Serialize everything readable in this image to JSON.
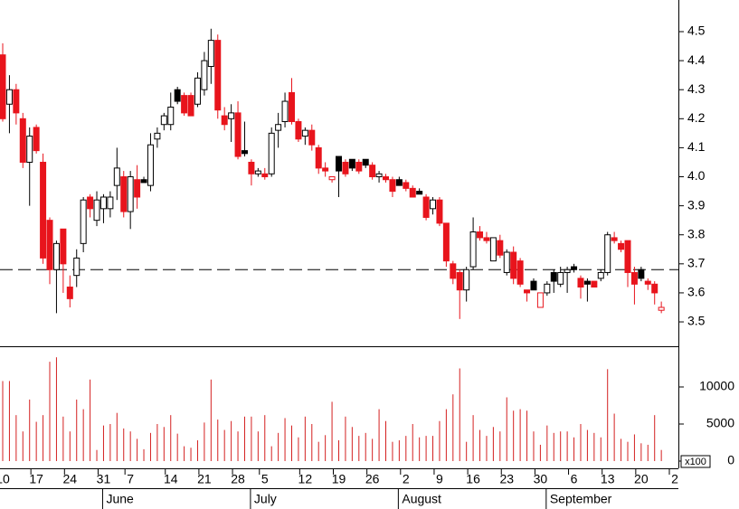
{
  "chart_data": {
    "type": "candlestick",
    "up_color": "#000000",
    "down_color": "#e8141c",
    "ylim": [
      3.416,
      4.609
    ],
    "yticks": [
      3.5,
      3.6,
      3.7,
      3.8,
      3.9,
      {
        "value": 4,
        "label": "4.0"
      },
      4.1,
      4.2,
      4.3,
      4.4,
      4.5
    ],
    "reference_line": 3.68,
    "open": [
      4.42,
      4.25,
      4.3,
      4.2,
      4.05,
      4.17,
      4.05,
      3.85,
      3.68,
      3.82,
      3.62,
      3.66,
      3.77,
      3.93,
      3.85,
      3.89,
      3.89,
      3.97,
      4.0,
      3.88,
      3.99,
      3.99,
      3.97,
      4.13,
      4.18,
      4.18,
      4.3,
      4.28,
      4.28,
      4.25,
      4.3,
      4.38,
      4.47,
      4.21,
      4.2,
      4.22,
      4.09,
      4.05,
      4.01,
      4.01,
      4.01,
      4.16,
      4.19,
      4.29,
      4.19,
      4.14,
      4.16,
      4.1,
      4.03,
      3.99,
      4.07,
      4.05,
      4.06,
      4.05,
      4.06,
      4.04,
      4.0,
      4.0,
      3.99,
      3.99,
      3.98,
      3.96,
      3.95,
      3.93,
      3.89,
      3.92,
      3.84,
      3.7,
      3.67,
      3.61,
      3.69,
      3.81,
      3.79,
      3.71,
      3.78,
      3.67,
      3.74,
      3.71,
      3.61,
      3.64,
      3.55,
      3.6,
      3.67,
      3.63,
      3.67,
      3.69,
      3.65,
      3.64,
      3.64,
      3.65,
      3.67,
      3.79,
      3.77,
      3.78,
      3.67,
      3.68,
      3.64,
      3.63,
      3.54
    ],
    "high": [
      4.46,
      4.35,
      4.32,
      4.22,
      4.17,
      4.18,
      4.08,
      3.86,
      3.78,
      3.82,
      3.66,
      3.75,
      3.93,
      3.94,
      3.95,
      3.94,
      3.95,
      4.1,
      4.02,
      4.02,
      4.04,
      4.0,
      4.15,
      4.17,
      4.22,
      4.29,
      4.31,
      4.29,
      4.29,
      4.36,
      4.43,
      4.51,
      4.49,
      4.24,
      4.25,
      4.26,
      4.19,
      4.06,
      4.03,
      4.03,
      4.17,
      4.22,
      4.29,
      4.34,
      4.2,
      4.17,
      4.18,
      4.11,
      4.05,
      4.0,
      4.07,
      4.06,
      4.06,
      4.06,
      4.06,
      4.05,
      4.02,
      4.01,
      4.0,
      4.0,
      3.99,
      3.97,
      3.96,
      3.94,
      3.93,
      3.93,
      3.84,
      3.71,
      3.68,
      3.69,
      3.86,
      3.83,
      3.81,
      3.79,
      3.8,
      3.75,
      3.76,
      3.72,
      3.61,
      3.65,
      3.6,
      3.64,
      3.68,
      3.69,
      3.69,
      3.7,
      3.66,
      3.65,
      3.64,
      3.68,
      3.81,
      3.81,
      3.78,
      3.78,
      3.69,
      3.69,
      3.65,
      3.64,
      3.57
    ],
    "low": [
      4.19,
      4.15,
      4.18,
      4.03,
      3.9,
      4.08,
      3.7,
      3.63,
      3.53,
      3.6,
      3.55,
      3.62,
      3.74,
      3.86,
      3.83,
      3.84,
      3.86,
      3.92,
      3.86,
      3.82,
      3.89,
      3.98,
      3.95,
      4.1,
      4.16,
      4.16,
      4.25,
      4.21,
      4.21,
      4.24,
      4.28,
      4.32,
      4.2,
      4.16,
      4.12,
      4.06,
      4.07,
      3.97,
      4.0,
      3.99,
      4.0,
      4.1,
      4.17,
      4.18,
      4.12,
      4.11,
      4.09,
      4.01,
      4.0,
      3.98,
      3.93,
      4.0,
      4.02,
      4.01,
      4.03,
      3.99,
      3.98,
      3.98,
      3.93,
      3.97,
      3.95,
      3.93,
      3.94,
      3.85,
      3.87,
      3.83,
      3.69,
      3.63,
      3.51,
      3.57,
      3.68,
      3.78,
      3.77,
      3.71,
      3.72,
      3.66,
      3.63,
      3.62,
      3.57,
      3.61,
      3.55,
      3.59,
      3.6,
      3.62,
      3.6,
      3.67,
      3.58,
      3.57,
      3.62,
      3.64,
      3.66,
      3.77,
      3.74,
      3.62,
      3.56,
      3.64,
      3.61,
      3.56,
      3.53
    ],
    "close": [
      4.2,
      4.3,
      4.22,
      4.05,
      4.14,
      4.09,
      3.72,
      3.68,
      3.77,
      3.7,
      3.58,
      3.72,
      3.92,
      3.89,
      3.92,
      3.93,
      3.93,
      4.03,
      3.88,
      4.0,
      3.93,
      3.98,
      4.11,
      4.15,
      4.21,
      4.24,
      4.26,
      4.22,
      4.21,
      4.34,
      4.4,
      4.47,
      4.23,
      4.18,
      4.22,
      4.07,
      4.08,
      4.01,
      4.02,
      4.0,
      4.15,
      4.18,
      4.26,
      4.19,
      4.13,
      4.16,
      4.11,
      4.03,
      4.02,
      4.0,
      4.02,
      4.01,
      4.03,
      4.02,
      4.04,
      4.0,
      4.01,
      3.99,
      3.95,
      3.97,
      3.96,
      3.93,
      3.94,
      3.86,
      3.92,
      3.84,
      3.71,
      3.65,
      3.61,
      3.68,
      3.81,
      3.79,
      3.78,
      3.79,
      3.73,
      3.74,
      3.65,
      3.63,
      3.6,
      3.61,
      3.6,
      3.63,
      3.64,
      3.67,
      3.68,
      3.68,
      3.62,
      3.63,
      3.62,
      3.67,
      3.8,
      3.78,
      3.75,
      3.67,
      3.63,
      3.65,
      3.63,
      3.6,
      3.55
    ],
    "volume": {
      "color": "#d42020",
      "unit_label": "x100",
      "ylim": [
        -976,
        15366
      ],
      "yticks": [
        0,
        5000,
        10000
      ],
      "values": [
        10800,
        10800,
        6200,
        4000,
        8300,
        5300,
        6200,
        13400,
        14000,
        6000,
        4000,
        8300,
        7000,
        11000,
        1500,
        4800,
        5000,
        6500,
        4400,
        4000,
        3000,
        1600,
        3800,
        5000,
        4600,
        6200,
        3700,
        2000,
        1800,
        2800,
        5200,
        11000,
        5600,
        4200,
        5400,
        4000,
        6000,
        6000,
        4000,
        6200,
        2000,
        3800,
        5800,
        4800,
        3200,
        6000,
        5000,
        2600,
        3500,
        8000,
        2800,
        6000,
        4600,
        3400,
        3800,
        3000,
        7000,
        5400,
        2600,
        2800,
        3400,
        5000,
        3200,
        3400,
        3400,
        5400,
        7000,
        9000,
        12500,
        2600,
        6200,
        4200,
        3400,
        4600,
        4000,
        8600,
        6800,
        7000,
        6800,
        4000,
        2200,
        4800,
        3800,
        4000,
        4000,
        3200,
        5000,
        4200,
        3800,
        3200,
        12400,
        6400,
        3000,
        2600,
        3600,
        2400,
        2200,
        6200,
        1500
      ]
    },
    "xticks": [
      {
        "value": 0,
        "label": "10"
      },
      {
        "value": 5,
        "label": "17"
      },
      {
        "value": 10,
        "label": "24"
      },
      {
        "value": 15,
        "label": "31"
      },
      {
        "value": 19,
        "label": "7"
      },
      {
        "value": 25,
        "label": "14"
      },
      {
        "value": 30,
        "label": "21"
      },
      {
        "value": 35,
        "label": "28"
      },
      {
        "value": 39,
        "label": "5"
      },
      {
        "value": 45,
        "label": "12"
      },
      {
        "value": 50,
        "label": "19"
      },
      {
        "value": 55,
        "label": "26"
      },
      {
        "value": 60,
        "label": "2"
      },
      {
        "value": 65,
        "label": "9"
      },
      {
        "value": 70,
        "label": "16"
      },
      {
        "value": 75,
        "label": "23"
      },
      {
        "value": 80,
        "label": "30"
      },
      {
        "value": 85,
        "label": "6"
      },
      {
        "value": 90,
        "label": "13"
      },
      {
        "value": 95,
        "label": "20"
      },
      {
        "value": 100,
        "label": "2"
      }
    ],
    "months": [
      {
        "value": 15,
        "label": "June"
      },
      {
        "value": 37,
        "label": "July"
      },
      {
        "value": 59,
        "label": "August"
      },
      {
        "value": 81,
        "label": "September"
      }
    ]
  }
}
